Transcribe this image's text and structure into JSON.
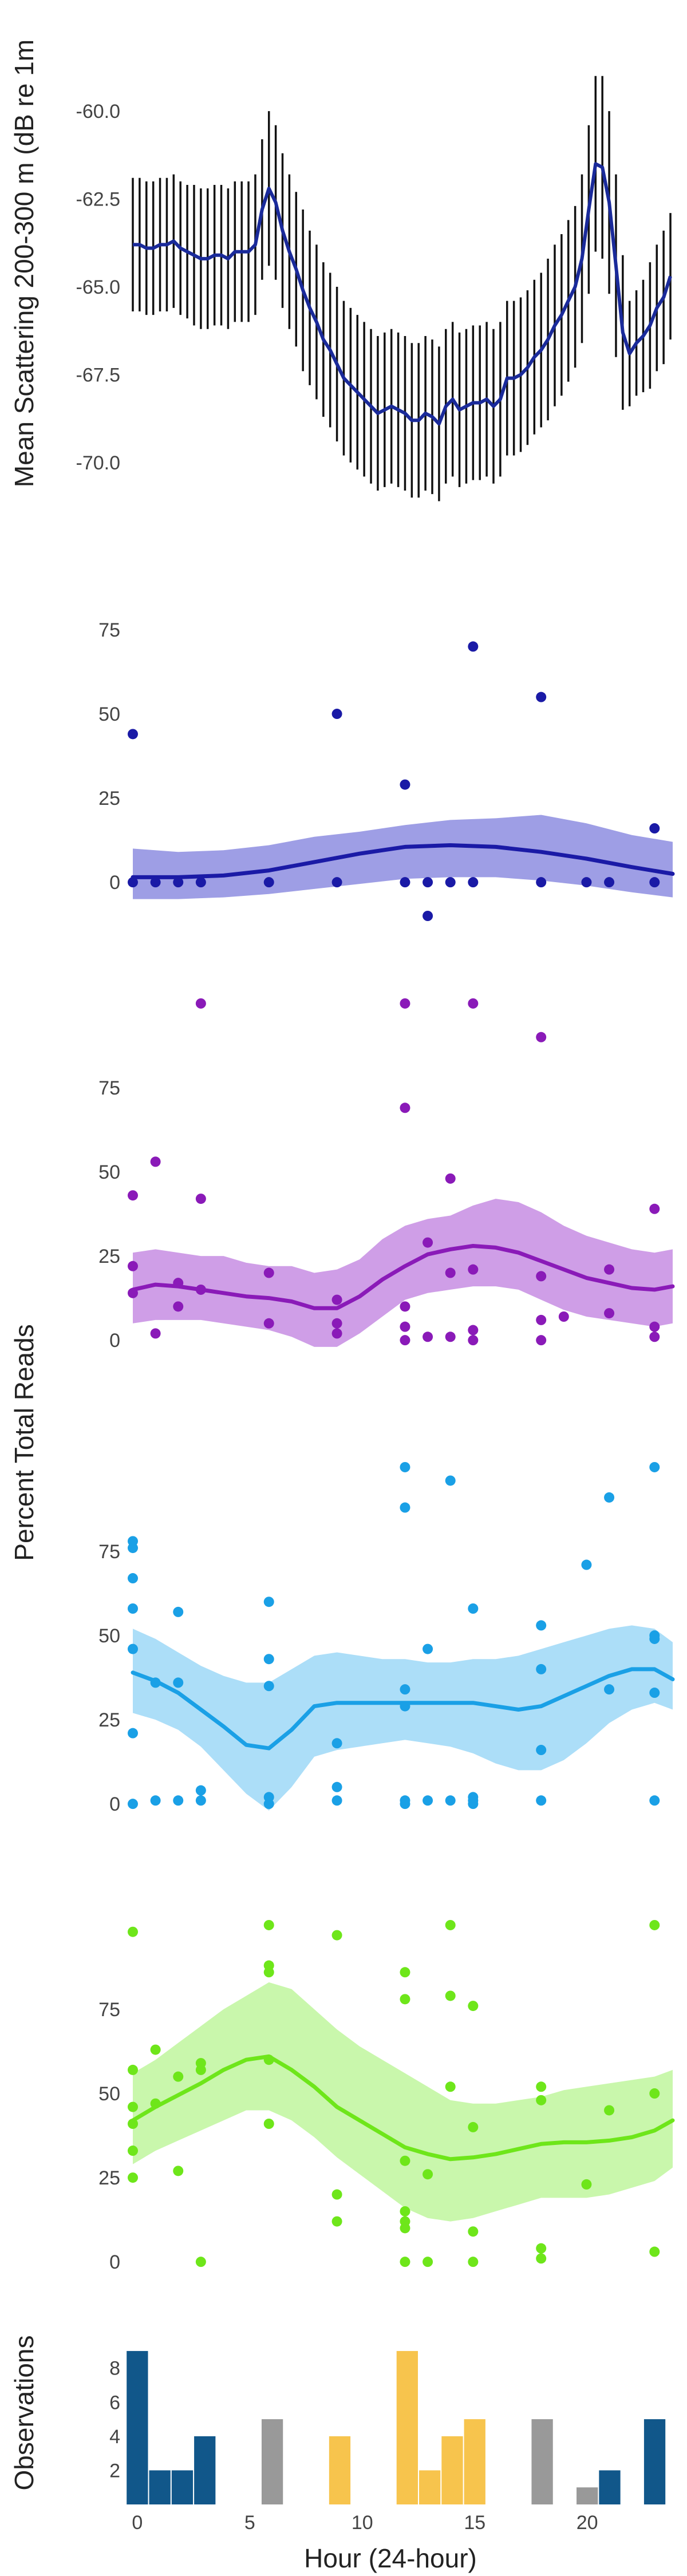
{
  "chart_data": [
    {
      "type": "line",
      "panel": "backscatter",
      "ylabel": "Mean Scattering 200-300 m (dB re 1m",
      "ylim": [
        -71.5,
        -57.0
      ],
      "yticks": [
        -60.0,
        -62.5,
        -65.0,
        -67.5,
        -70.0
      ],
      "ytick_labels": [
        "-60.0",
        "-62.5",
        "-65.0",
        "-67.5",
        "-70.0"
      ],
      "grid": false,
      "legend": "none",
      "color_line": "#1a2a9a",
      "color_bars": "#111111",
      "x": [
        0.0,
        0.3,
        0.6,
        0.9,
        1.2,
        1.5,
        1.8,
        2.1,
        2.4,
        2.7,
        3.0,
        3.3,
        3.6,
        3.9,
        4.2,
        4.5,
        4.8,
        5.1,
        5.4,
        5.7,
        6.0,
        6.3,
        6.6,
        6.9,
        7.2,
        7.5,
        7.8,
        8.1,
        8.4,
        8.7,
        9.0,
        9.3,
        9.6,
        9.9,
        10.2,
        10.5,
        10.8,
        11.1,
        11.4,
        11.7,
        12.0,
        12.3,
        12.6,
        12.9,
        13.2,
        13.5,
        13.8,
        14.1,
        14.4,
        14.7,
        15.0,
        15.3,
        15.6,
        15.9,
        16.2,
        16.5,
        16.8,
        17.1,
        17.4,
        17.7,
        18.0,
        18.3,
        18.6,
        18.9,
        19.2,
        19.5,
        19.8,
        20.1,
        20.4,
        20.7,
        21.0,
        21.3,
        21.6,
        21.9,
        22.2,
        22.5,
        22.8,
        23.1,
        23.4,
        23.7
      ],
      "mean": [
        -63.8,
        -63.8,
        -63.9,
        -63.9,
        -63.8,
        -63.8,
        -63.7,
        -63.9,
        -64.0,
        -64.1,
        -64.2,
        -64.2,
        -64.1,
        -64.1,
        -64.2,
        -64.0,
        -64.0,
        -64.0,
        -63.8,
        -62.8,
        -62.2,
        -62.6,
        -63.4,
        -64.0,
        -64.5,
        -65.1,
        -65.6,
        -66.0,
        -66.5,
        -66.8,
        -67.2,
        -67.6,
        -67.8,
        -68.0,
        -68.2,
        -68.4,
        -68.6,
        -68.5,
        -68.4,
        -68.5,
        -68.6,
        -68.8,
        -68.8,
        -68.6,
        -68.7,
        -68.9,
        -68.4,
        -68.2,
        -68.5,
        -68.4,
        -68.3,
        -68.3,
        -68.2,
        -68.4,
        -68.2,
        -67.6,
        -67.6,
        -67.5,
        -67.3,
        -67.0,
        -66.8,
        -66.5,
        -66.1,
        -65.8,
        -65.4,
        -65.0,
        -64.2,
        -62.8,
        -61.5,
        -61.6,
        -62.6,
        -64.4,
        -66.3,
        -66.9,
        -66.6,
        -66.4,
        -66.1,
        -65.6,
        -65.3,
        -64.7
      ],
      "err": [
        1.9,
        1.9,
        1.9,
        1.9,
        1.9,
        1.9,
        1.9,
        1.9,
        1.9,
        2.0,
        2.0,
        2.0,
        2.0,
        2.0,
        2.0,
        2.0,
        2.0,
        2.0,
        2.0,
        2.0,
        2.2,
        2.2,
        2.2,
        2.2,
        2.2,
        2.3,
        2.2,
        2.2,
        2.2,
        2.2,
        2.2,
        2.2,
        2.2,
        2.2,
        2.2,
        2.2,
        2.2,
        2.2,
        2.2,
        2.2,
        2.2,
        2.2,
        2.2,
        2.2,
        2.2,
        2.2,
        2.2,
        2.2,
        2.2,
        2.2,
        2.2,
        2.2,
        2.2,
        2.2,
        2.2,
        2.2,
        2.2,
        2.2,
        2.2,
        2.2,
        2.2,
        2.3,
        2.3,
        2.3,
        2.3,
        2.3,
        2.4,
        2.4,
        2.5,
        2.6,
        2.6,
        2.6,
        2.2,
        1.5,
        1.5,
        1.6,
        1.8,
        1.8,
        1.9,
        1.8
      ]
    },
    {
      "type": "scatter",
      "panel": "reads-1",
      "ylim": [
        -10,
        92
      ],
      "yticks": [
        0,
        25,
        50,
        75
      ],
      "ytick_labels": [
        "0",
        "25",
        "50",
        "75"
      ],
      "color": "#1a1aa6",
      "band_color": "#9999e4",
      "points": [
        [
          0,
          44
        ],
        [
          0,
          0
        ],
        [
          1,
          0
        ],
        [
          2,
          0
        ],
        [
          3,
          0
        ],
        [
          6,
          0
        ],
        [
          9,
          50
        ],
        [
          9,
          0
        ],
        [
          12,
          29
        ],
        [
          12,
          0
        ],
        [
          13,
          -10
        ],
        [
          13,
          0
        ],
        [
          14,
          0
        ],
        [
          15,
          70
        ],
        [
          15,
          0
        ],
        [
          18,
          55
        ],
        [
          18,
          0
        ],
        [
          20,
          0
        ],
        [
          21,
          0
        ],
        [
          23,
          16
        ],
        [
          23,
          0
        ]
      ],
      "smooth_x": [
        0,
        2,
        4,
        6,
        8,
        10,
        12,
        14,
        16,
        18,
        20,
        22,
        24
      ],
      "smooth_y": [
        1.5,
        1.5,
        2,
        3.5,
        6,
        8.5,
        10.5,
        11,
        10.5,
        9,
        7,
        4.5,
        2.5
      ],
      "band_lo": [
        -5,
        -5,
        -4.5,
        -3.5,
        -2,
        -0.5,
        1,
        1.5,
        1.5,
        0.5,
        -1,
        -3,
        -4.5
      ],
      "band_hi": [
        10,
        9,
        9.5,
        11,
        13.5,
        15,
        17,
        18.5,
        19,
        20,
        17.5,
        14,
        12
      ]
    },
    {
      "type": "scatter",
      "panel": "reads-2",
      "ylim": [
        -10,
        92
      ],
      "yticks": [
        0,
        25,
        50,
        75
      ],
      "ytick_labels": [
        "0",
        "25",
        "50",
        "75"
      ],
      "color": "#8a1ab8",
      "band_color": "#cc99e6",
      "points": [
        [
          0,
          43
        ],
        [
          0,
          22
        ],
        [
          0,
          14
        ],
        [
          1,
          53
        ],
        [
          1,
          2
        ],
        [
          2,
          17
        ],
        [
          2,
          10
        ],
        [
          3,
          42
        ],
        [
          3,
          15
        ],
        [
          3,
          100
        ],
        [
          6,
          20
        ],
        [
          6,
          5
        ],
        [
          9,
          12
        ],
        [
          9,
          5
        ],
        [
          9,
          2
        ],
        [
          12,
          69
        ],
        [
          12,
          10
        ],
        [
          12,
          4
        ],
        [
          12,
          0
        ],
        [
          12,
          100
        ],
        [
          13,
          29
        ],
        [
          13,
          1
        ],
        [
          14,
          48
        ],
        [
          14,
          20
        ],
        [
          14,
          1
        ],
        [
          15,
          21
        ],
        [
          15,
          3
        ],
        [
          15,
          0
        ],
        [
          15,
          100
        ],
        [
          18,
          19
        ],
        [
          18,
          6
        ],
        [
          18,
          0
        ],
        [
          18,
          90
        ],
        [
          19,
          7
        ],
        [
          21,
          21
        ],
        [
          21,
          8
        ],
        [
          23,
          39
        ],
        [
          23,
          4
        ],
        [
          23,
          1
        ]
      ],
      "smooth_x": [
        0,
        1,
        2,
        3,
        4,
        5,
        6,
        7,
        8,
        9,
        10,
        11,
        12,
        13,
        14,
        15,
        16,
        17,
        18,
        19,
        20,
        21,
        22,
        23,
        24
      ],
      "smooth_y": [
        15,
        16.5,
        16,
        15,
        14,
        13,
        12.5,
        11.5,
        9.5,
        9.5,
        13,
        18,
        22,
        25.5,
        27,
        28,
        27.5,
        26,
        23.5,
        21,
        18.5,
        17,
        15.5,
        15,
        16
      ],
      "band_lo": [
        5,
        6,
        6,
        6,
        5,
        4,
        3,
        1,
        -2,
        -2,
        2,
        7,
        12,
        14,
        15,
        16,
        16,
        15,
        12,
        9,
        7,
        6,
        5,
        4,
        5
      ],
      "band_hi": [
        26,
        27,
        26,
        25,
        25,
        23,
        22,
        22,
        20,
        21,
        24,
        30,
        34,
        36,
        37,
        40,
        42,
        41,
        38,
        34,
        31,
        29,
        27,
        26,
        27
      ]
    },
    {
      "type": "scatter",
      "panel": "reads-3",
      "ylim": [
        -10,
        92
      ],
      "yticks": [
        0,
        25,
        50,
        75
      ],
      "ytick_labels": [
        "0",
        "25",
        "50",
        "75"
      ],
      "ylabel": "Percent Total Reads",
      "color": "#1aa0e6",
      "band_color": "#a8dcf8",
      "points": [
        [
          0,
          78
        ],
        [
          0,
          76
        ],
        [
          0,
          67
        ],
        [
          0,
          58
        ],
        [
          0,
          46
        ],
        [
          0,
          21
        ],
        [
          0,
          0
        ],
        [
          1,
          36
        ],
        [
          1,
          1
        ],
        [
          2,
          57
        ],
        [
          2,
          36
        ],
        [
          2,
          1
        ],
        [
          3,
          4
        ],
        [
          3,
          1
        ],
        [
          6,
          60
        ],
        [
          6,
          43
        ],
        [
          6,
          35
        ],
        [
          6,
          2
        ],
        [
          6,
          0
        ],
        [
          9,
          18
        ],
        [
          9,
          5
        ],
        [
          9,
          1
        ],
        [
          12,
          100
        ],
        [
          12,
          88
        ],
        [
          12,
          34
        ],
        [
          12,
          29
        ],
        [
          12,
          1
        ],
        [
          12,
          0
        ],
        [
          13,
          46
        ],
        [
          13,
          1
        ],
        [
          14,
          96
        ],
        [
          14,
          1
        ],
        [
          15,
          58
        ],
        [
          15,
          2
        ],
        [
          15,
          1
        ],
        [
          15,
          0
        ],
        [
          18,
          53
        ],
        [
          18,
          40
        ],
        [
          18,
          16
        ],
        [
          18,
          1
        ],
        [
          20,
          71
        ],
        [
          21,
          91
        ],
        [
          21,
          34
        ],
        [
          23,
          100
        ],
        [
          23,
          50
        ],
        [
          23,
          49
        ],
        [
          23,
          33
        ],
        [
          23,
          1
        ]
      ],
      "smooth_x": [
        0,
        1,
        2,
        3,
        4,
        5,
        6,
        7,
        8,
        9,
        10,
        11,
        12,
        13,
        14,
        15,
        16,
        17,
        18,
        19,
        20,
        21,
        22,
        23,
        24
      ],
      "smooth_y": [
        39,
        36.5,
        33,
        28,
        23,
        17.5,
        16.5,
        22,
        29,
        30,
        30,
        30,
        30,
        30,
        30,
        30,
        29,
        28,
        29,
        32,
        35,
        38,
        40,
        40,
        37
      ],
      "band_lo": [
        27,
        25,
        22,
        17,
        10,
        3,
        -2,
        5,
        14,
        16,
        17,
        18,
        19,
        18,
        17,
        15,
        12,
        10,
        10,
        13,
        18,
        24,
        28,
        30,
        28
      ],
      "band_hi": [
        52,
        49,
        45,
        41,
        38,
        36,
        36,
        40,
        44,
        45,
        44,
        43,
        43,
        42,
        42,
        43,
        43,
        44,
        46,
        48,
        50,
        52,
        53,
        52,
        48
      ]
    },
    {
      "type": "scatter",
      "panel": "reads-4",
      "ylim": [
        -10,
        92
      ],
      "yticks": [
        0,
        25,
        50,
        75
      ],
      "ytick_labels": [
        "0",
        "25",
        "50",
        "75"
      ],
      "color": "#6ee61a",
      "band_color": "#c6f7a8",
      "points": [
        [
          0,
          98
        ],
        [
          0,
          57
        ],
        [
          0,
          46
        ],
        [
          0,
          41
        ],
        [
          0,
          33
        ],
        [
          0,
          25
        ],
        [
          1,
          63
        ],
        [
          1,
          47
        ],
        [
          2,
          55
        ],
        [
          2,
          27
        ],
        [
          3,
          59
        ],
        [
          3,
          57
        ],
        [
          3,
          0
        ],
        [
          6,
          88
        ],
        [
          6,
          86
        ],
        [
          6,
          60
        ],
        [
          6,
          41
        ],
        [
          6,
          100
        ],
        [
          9,
          97
        ],
        [
          9,
          20
        ],
        [
          9,
          12
        ],
        [
          12,
          86
        ],
        [
          12,
          78
        ],
        [
          12,
          30
        ],
        [
          12,
          15
        ],
        [
          12,
          12
        ],
        [
          12,
          10
        ],
        [
          12,
          0
        ],
        [
          13,
          26
        ],
        [
          13,
          0
        ],
        [
          14,
          79
        ],
        [
          14,
          52
        ],
        [
          14,
          100
        ],
        [
          15,
          76
        ],
        [
          15,
          40
        ],
        [
          15,
          9
        ],
        [
          15,
          0
        ],
        [
          18,
          52
        ],
        [
          18,
          48
        ],
        [
          18,
          4
        ],
        [
          18,
          1
        ],
        [
          20,
          23
        ],
        [
          21,
          45
        ],
        [
          23,
          100
        ],
        [
          23,
          50
        ],
        [
          23,
          3
        ]
      ],
      "smooth_x": [
        0,
        1,
        2,
        3,
        4,
        5,
        6,
        7,
        8,
        9,
        10,
        11,
        12,
        13,
        14,
        15,
        16,
        17,
        18,
        19,
        20,
        21,
        22,
        23,
        24
      ],
      "smooth_y": [
        42,
        46,
        49.5,
        53,
        57,
        60,
        61,
        57,
        52,
        46,
        42,
        38,
        34,
        32,
        30.5,
        31,
        32,
        33.5,
        35,
        35.5,
        35.5,
        36,
        37,
        39,
        42
      ],
      "band_lo": [
        29,
        33,
        36,
        39,
        42,
        45,
        45,
        42,
        37,
        31,
        26,
        21,
        16,
        13,
        12,
        13,
        15,
        17,
        19,
        19,
        19,
        20,
        22,
        24,
        28
      ],
      "band_hi": [
        56,
        60,
        65,
        70,
        75,
        79,
        83,
        81,
        75,
        69,
        64,
        60,
        56,
        52,
        48,
        47,
        47,
        48,
        49,
        51,
        52,
        53,
        54,
        55,
        57
      ]
    },
    {
      "type": "bar",
      "panel": "observations",
      "ylabel": "Observations",
      "xlabel": "Hour (24-hour)",
      "ylim": [
        0,
        9.3
      ],
      "yticks": [
        2,
        4,
        6,
        8
      ],
      "ytick_labels": [
        "2",
        "4",
        "6",
        "8"
      ],
      "xlim": [
        -0.2,
        23.8
      ],
      "xticks": [
        0,
        5,
        10,
        15,
        20
      ],
      "xtick_labels": [
        "0",
        "5",
        "10",
        "15",
        "20"
      ],
      "colors": {
        "dark": "#11578a",
        "grey": "#999999",
        "gold": "#f7c44d"
      },
      "hours": [
        0,
        1,
        2,
        3,
        6,
        9,
        12,
        13,
        14,
        15,
        18,
        20,
        21,
        23
      ],
      "values": [
        9,
        2,
        2,
        4,
        5,
        4,
        9,
        2,
        4,
        5,
        5,
        1,
        2,
        5
      ],
      "bar_colors": [
        "dark",
        "dark",
        "dark",
        "dark",
        "grey",
        "gold",
        "gold",
        "gold",
        "gold",
        "gold",
        "grey",
        "grey",
        "dark",
        "dark"
      ]
    }
  ]
}
